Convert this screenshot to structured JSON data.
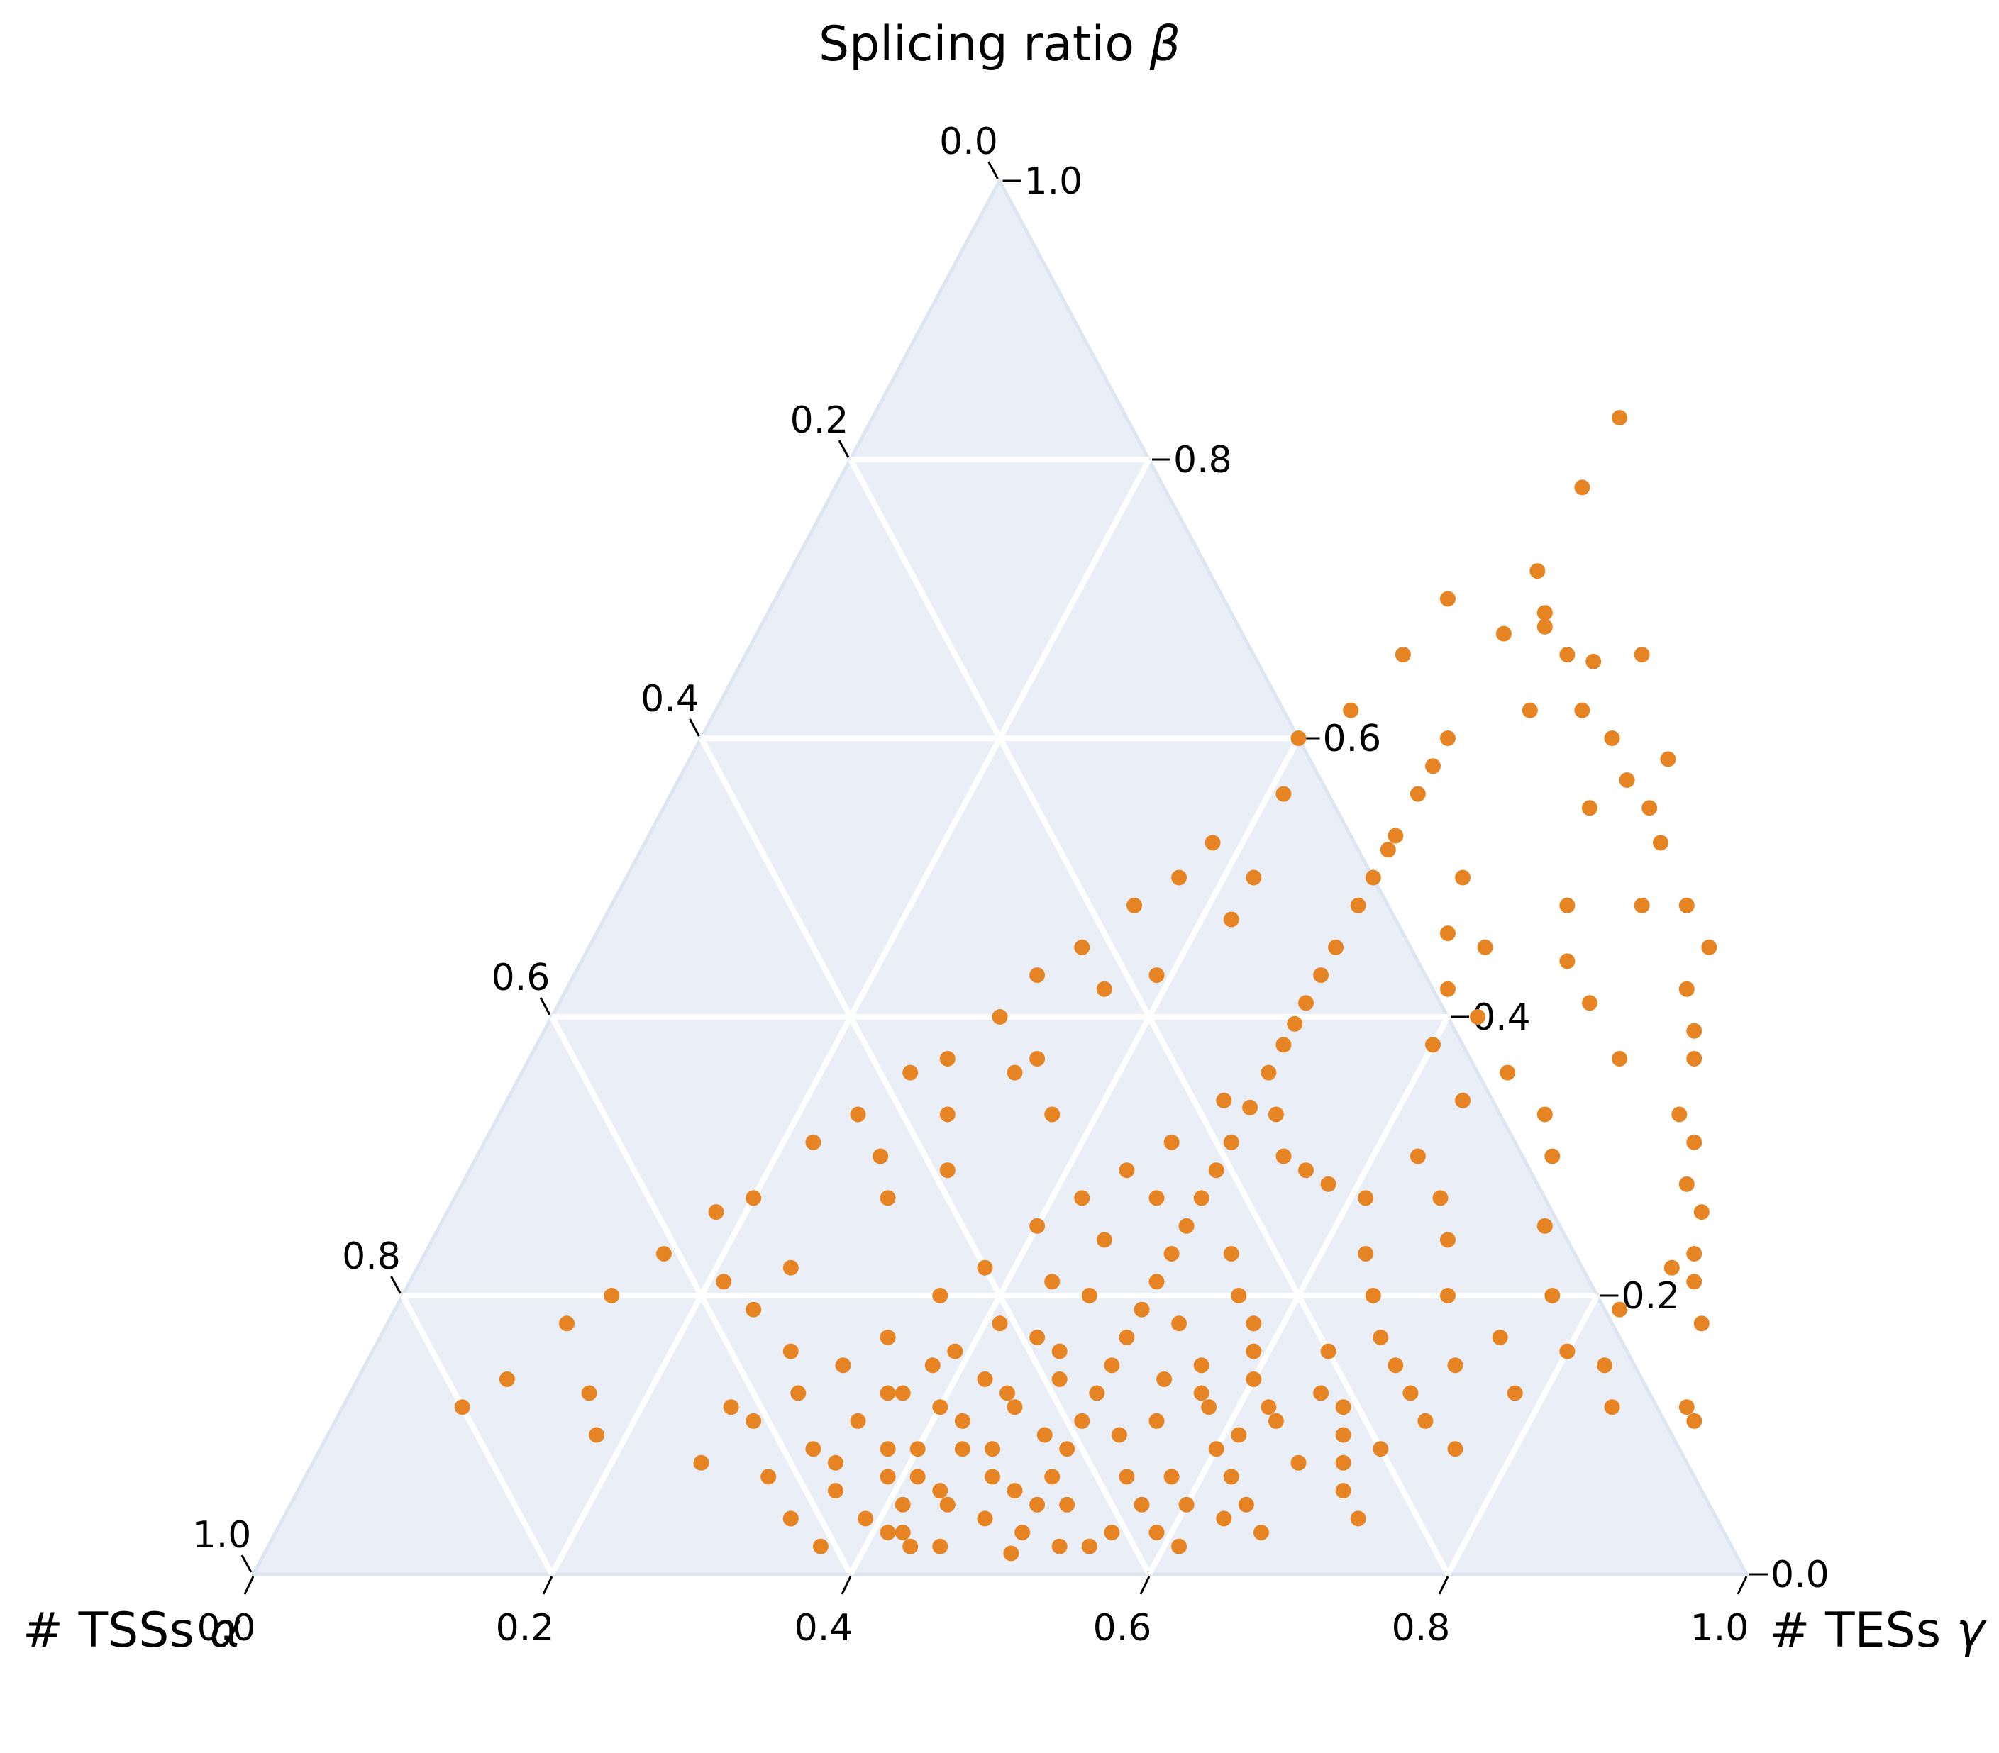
{
  "chart_data": {
    "type": "scatter",
    "subtype": "ternary",
    "axes": {
      "top": {
        "title": "Splicing ratio",
        "symbol": "β"
      },
      "left": {
        "title": "# TSSs",
        "symbol": "α"
      },
      "right": {
        "title": "# TESs",
        "symbol": "γ"
      }
    },
    "ticks": {
      "bottom": [
        "0.0",
        "0.2",
        "0.4",
        "0.6",
        "0.8",
        "1.0"
      ],
      "right": [
        "0.0",
        "0.2",
        "0.4",
        "0.6",
        "0.8",
        "1.0"
      ],
      "left": [
        "0.0",
        "0.2",
        "0.4",
        "0.6",
        "0.8",
        "1.0"
      ]
    },
    "colors": {
      "background": "#eaeff7",
      "grid": "#ffffff",
      "border": "#dde5f1",
      "marker": "#e68424"
    },
    "grid": true,
    "axis_range": [
      0,
      1
    ],
    "series": [
      {
        "marker_color": "#e68424",
        "points_gamma_beta": [
          [
            0.5,
            0.83
          ],
          [
            0.5,
            0.78
          ],
          [
            0.5,
            0.72
          ],
          [
            0.5,
            0.675
          ],
          [
            0.5,
            0.6
          ],
          [
            0.5,
            0.58
          ],
          [
            0.5,
            0.56
          ],
          [
            0.5,
            0.53
          ],
          [
            0.5,
            0.52
          ],
          [
            0.5,
            0.5
          ],
          [
            0.5,
            0.48
          ],
          [
            0.5,
            0.45
          ],
          [
            0.5,
            0.43
          ],
          [
            0.5,
            0.41
          ],
          [
            0.5,
            0.395
          ],
          [
            0.5,
            0.38
          ],
          [
            0.5,
            0.36
          ],
          [
            0.5,
            0.335
          ],
          [
            0.5,
            0.31
          ],
          [
            0.5,
            0.29
          ],
          [
            0.5,
            0.27
          ],
          [
            0.5,
            0.25
          ],
          [
            0.5,
            0.23
          ],
          [
            0.5,
            0.21
          ],
          [
            0.5,
            0.19
          ],
          [
            0.5,
            0.17
          ],
          [
            0.5,
            0.15
          ],
          [
            0.5,
            0.13
          ],
          [
            0.5,
            0.11
          ],
          [
            0.5,
            0.09
          ],
          [
            0.5,
            0.07
          ],
          [
            0.5,
            0.05
          ],
          [
            0.5,
            0.03
          ],
          [
            0.5,
            0.015
          ],
          [
            0.52,
            0.69
          ],
          [
            0.525,
            0.68
          ],
          [
            0.55,
            0.66
          ],
          [
            0.545,
            0.62
          ],
          [
            0.58,
            0.62
          ],
          [
            0.57,
            0.655
          ],
          [
            0.6,
            0.66
          ],
          [
            0.61,
            0.6
          ],
          [
            0.62,
            0.55
          ],
          [
            0.655,
            0.585
          ],
          [
            0.66,
            0.55
          ],
          [
            0.68,
            0.525
          ],
          [
            0.635,
            0.57
          ],
          [
            0.69,
            0.48
          ],
          [
            0.72,
            0.48
          ],
          [
            0.75,
            0.45
          ],
          [
            0.75,
            0.42
          ],
          [
            0.77,
            0.39
          ],
          [
            0.78,
            0.37
          ],
          [
            0.79,
            0.33
          ],
          [
            0.81,
            0.31
          ],
          [
            0.82,
            0.28
          ],
          [
            0.84,
            0.26
          ],
          [
            0.85,
            0.23
          ],
          [
            0.86,
            0.21
          ],
          [
            0.88,
            0.18
          ],
          [
            0.9,
            0.12
          ],
          [
            0.91,
            0.11
          ],
          [
            0.85,
            0.12
          ],
          [
            0.83,
            0.15
          ],
          [
            0.72,
            0.3
          ],
          [
            0.74,
            0.25
          ],
          [
            0.7,
            0.2
          ],
          [
            0.68,
            0.24
          ],
          [
            0.66,
            0.27
          ],
          [
            0.63,
            0.3
          ],
          [
            0.64,
            0.34
          ],
          [
            0.6,
            0.38
          ],
          [
            0.59,
            0.42
          ],
          [
            0.57,
            0.46
          ],
          [
            0.56,
            0.5
          ],
          [
            0.6,
            0.45
          ],
          [
            0.62,
            0.4
          ],
          [
            0.66,
            0.36
          ],
          [
            0.7,
            0.33
          ],
          [
            0.73,
            0.37
          ],
          [
            0.69,
            0.41
          ],
          [
            0.66,
            0.44
          ],
          [
            0.64,
            0.48
          ],
          [
            0.45,
            0.7
          ],
          [
            0.44,
            0.66
          ],
          [
            0.425,
            0.62
          ],
          [
            0.4,
            0.6
          ],
          [
            0.41,
            0.56
          ],
          [
            0.38,
            0.525
          ],
          [
            0.37,
            0.5
          ],
          [
            0.35,
            0.48
          ],
          [
            0.33,
            0.45
          ],
          [
            0.31,
            0.43
          ],
          [
            0.3,
            0.4
          ],
          [
            0.28,
            0.37
          ],
          [
            0.26,
            0.36
          ],
          [
            0.24,
            0.33
          ],
          [
            0.22,
            0.31
          ],
          [
            0.2,
            0.27
          ],
          [
            0.18,
            0.26
          ],
          [
            0.16,
            0.23
          ],
          [
            0.14,
            0.2
          ],
          [
            0.12,
            0.18
          ],
          [
            0.1,
            0.14
          ],
          [
            0.16,
            0.13
          ],
          [
            0.08,
            0.12
          ],
          [
            0.25,
            0.22
          ],
          [
            0.27,
            0.3
          ],
          [
            0.3,
            0.33
          ],
          [
            0.34,
            0.37
          ],
          [
            0.36,
            0.42
          ],
          [
            0.42,
            0.5
          ],
          [
            0.42,
            0.47
          ],
          [
            0.39,
            0.43
          ],
          [
            0.33,
            0.36
          ],
          [
            0.29,
            0.27
          ],
          [
            0.32,
            0.29
          ],
          [
            0.37,
            0.33
          ],
          [
            0.28,
            0.16
          ],
          [
            0.26,
            0.12
          ],
          [
            0.34,
            0.04
          ],
          [
            0.18,
            0.1
          ],
          [
            0.24,
            0.19
          ],
          [
            0.21,
            0.21
          ],
          [
            0.52,
            0.33
          ],
          [
            0.54,
            0.3
          ],
          [
            0.56,
            0.29
          ],
          [
            0.58,
            0.28
          ],
          [
            0.61,
            0.27
          ],
          [
            0.63,
            0.23
          ],
          [
            0.65,
            0.2
          ],
          [
            0.67,
            0.17
          ],
          [
            0.69,
            0.15
          ],
          [
            0.71,
            0.13
          ],
          [
            0.73,
            0.11
          ],
          [
            0.76,
            0.09
          ],
          [
            0.78,
            0.13
          ],
          [
            0.8,
            0.16
          ],
          [
            0.82,
            0.19
          ],
          [
            0.84,
            0.22
          ],
          [
            0.77,
            0.2
          ],
          [
            0.75,
            0.17
          ],
          [
            0.73,
            0.15
          ],
          [
            0.56,
            0.15
          ],
          [
            0.54,
            0.14
          ],
          [
            0.58,
            0.12
          ],
          [
            0.6,
            0.09
          ],
          [
            0.62,
            0.07
          ],
          [
            0.64,
            0.05
          ],
          [
            0.66,
            0.08
          ],
          [
            0.68,
            0.1
          ],
          [
            0.7,
            0.06
          ],
          [
            0.72,
            0.04
          ],
          [
            0.53,
            0.1
          ],
          [
            0.55,
            0.07
          ],
          [
            0.57,
            0.05
          ],
          [
            0.59,
            0.03
          ],
          [
            0.61,
            0.02
          ],
          [
            0.52,
            0.05
          ],
          [
            0.53,
            0.02
          ],
          [
            0.55,
            0.02
          ],
          [
            0.58,
            0.07
          ],
          [
            0.6,
            0.14
          ],
          [
            0.62,
            0.12
          ],
          [
            0.64,
            0.16
          ],
          [
            0.56,
            0.2
          ],
          [
            0.54,
            0.23
          ],
          [
            0.58,
            0.18
          ],
          [
            0.61,
            0.1
          ],
          [
            0.63,
            0.11
          ],
          [
            0.65,
            0.13
          ],
          [
            0.55,
            0.11
          ],
          [
            0.57,
            0.13
          ],
          [
            0.59,
            0.16
          ],
          [
            0.53,
            0.18
          ],
          [
            0.67,
            0.12
          ],
          [
            0.69,
            0.08
          ],
          [
            0.71,
            0.09
          ],
          [
            0.6,
            0.05
          ],
          [
            0.56,
            0.03
          ],
          [
            0.63,
            0.04
          ],
          [
            0.66,
            0.03
          ],
          [
            0.48,
            0.34
          ],
          [
            0.46,
            0.31
          ],
          [
            0.44,
            0.29
          ],
          [
            0.42,
            0.27
          ],
          [
            0.4,
            0.25
          ],
          [
            0.38,
            0.22
          ],
          [
            0.36,
            0.2
          ],
          [
            0.34,
            0.17
          ],
          [
            0.32,
            0.15
          ],
          [
            0.3,
            0.13
          ],
          [
            0.28,
            0.11
          ],
          [
            0.26,
            0.08
          ],
          [
            0.31,
            0.07
          ],
          [
            0.33,
            0.09
          ],
          [
            0.35,
            0.11
          ],
          [
            0.37,
            0.13
          ],
          [
            0.39,
            0.16
          ],
          [
            0.41,
            0.18
          ],
          [
            0.43,
            0.21
          ],
          [
            0.45,
            0.24
          ],
          [
            0.47,
            0.27
          ],
          [
            0.46,
            0.2
          ],
          [
            0.44,
            0.17
          ],
          [
            0.42,
            0.14
          ],
          [
            0.4,
            0.12
          ],
          [
            0.38,
            0.09
          ],
          [
            0.36,
            0.06
          ],
          [
            0.34,
            0.04
          ],
          [
            0.39,
            0.04
          ],
          [
            0.41,
            0.07
          ],
          [
            0.43,
            0.09
          ],
          [
            0.45,
            0.12
          ],
          [
            0.47,
            0.14
          ],
          [
            0.48,
            0.1
          ],
          [
            0.46,
            0.07
          ],
          [
            0.44,
            0.05
          ],
          [
            0.42,
            0.03
          ],
          [
            0.47,
            0.04
          ],
          [
            0.45,
            0.02
          ],
          [
            0.43,
            0.02
          ],
          [
            0.41,
            0.03
          ],
          [
            0.37,
            0.02
          ],
          [
            0.4,
            0.09
          ],
          [
            0.42,
            0.11
          ],
          [
            0.44,
            0.13
          ],
          [
            0.46,
            0.16
          ],
          [
            0.38,
            0.15
          ],
          [
            0.36,
            0.13
          ],
          [
            0.43,
            0.06
          ],
          [
            0.39,
            0.07
          ],
          [
            0.35,
            0.08
          ],
          [
            0.48,
            0.06
          ],
          [
            0.45,
            0.09
          ],
          [
            0.41,
            0.05
          ]
        ]
      }
    ]
  }
}
